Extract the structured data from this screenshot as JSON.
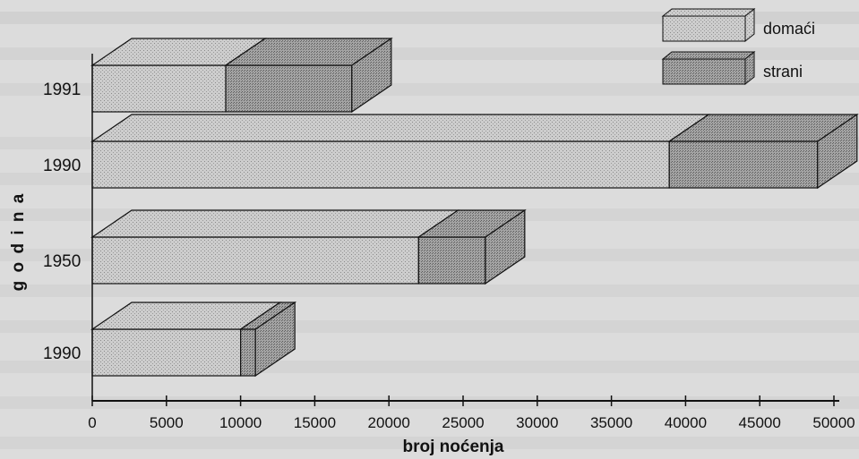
{
  "chart_data": {
    "type": "bar",
    "orientation": "horizontal",
    "style": "3d",
    "categories": [
      "1991",
      "1990",
      "1950",
      "1990"
    ],
    "series": [
      {
        "name": "domaći",
        "values": [
          9000,
          38900,
          22000,
          10000
        ],
        "color": "#c4c4c4"
      },
      {
        "name": "strani",
        "values": [
          8500,
          10000,
          4500,
          1000
        ],
        "color": "#9a9a9a"
      }
    ],
    "xlabel": "broj noćenja",
    "ylabel": "g o d i n a",
    "xlim": [
      0,
      50000
    ],
    "xticks": [
      0,
      5000,
      10000,
      15000,
      20000,
      25000,
      30000,
      35000,
      40000,
      45000,
      50000
    ],
    "legend": {
      "position": "top-right",
      "entries": [
        "domaći",
        "strani"
      ]
    },
    "grid": false
  }
}
